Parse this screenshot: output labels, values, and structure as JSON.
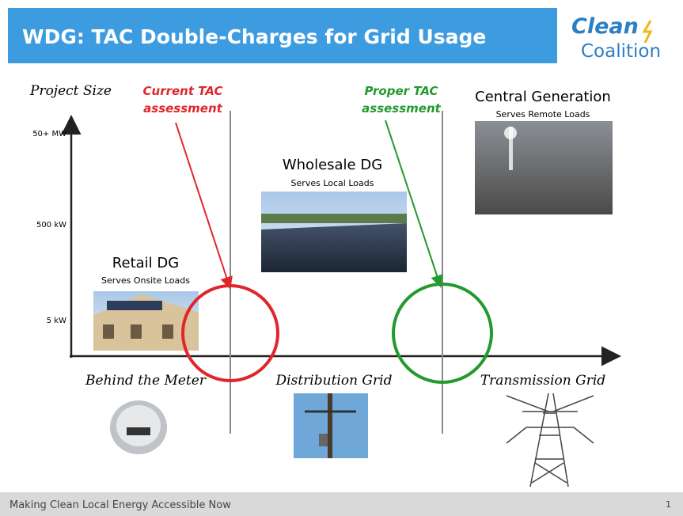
{
  "header": {
    "title": "WDG: TAC Double-Charges for Grid Usage",
    "logo": [
      "Clean",
      "Coalition"
    ]
  },
  "y_axis": {
    "label": "Project Size",
    "ticks": [
      "50+ MW",
      "500 kW",
      "5 kW"
    ]
  },
  "annotations": {
    "current": [
      "Current TAC",
      "assessment"
    ],
    "proper": [
      "Proper TAC",
      "assessment"
    ]
  },
  "segments": [
    {
      "title": "Retail DG",
      "subtitle": "Serves Onsite Loads"
    },
    {
      "title": "Wholesale DG",
      "subtitle": "Serves Local Loads"
    },
    {
      "title": "Central Generation",
      "subtitle": "Serves Remote Loads"
    }
  ],
  "x_axis": {
    "labels": [
      "Behind the Meter",
      "Distribution Grid",
      "Transmission Grid"
    ]
  },
  "footer": {
    "text": "Making Clean Local Energy Accessible Now",
    "page": "1"
  }
}
